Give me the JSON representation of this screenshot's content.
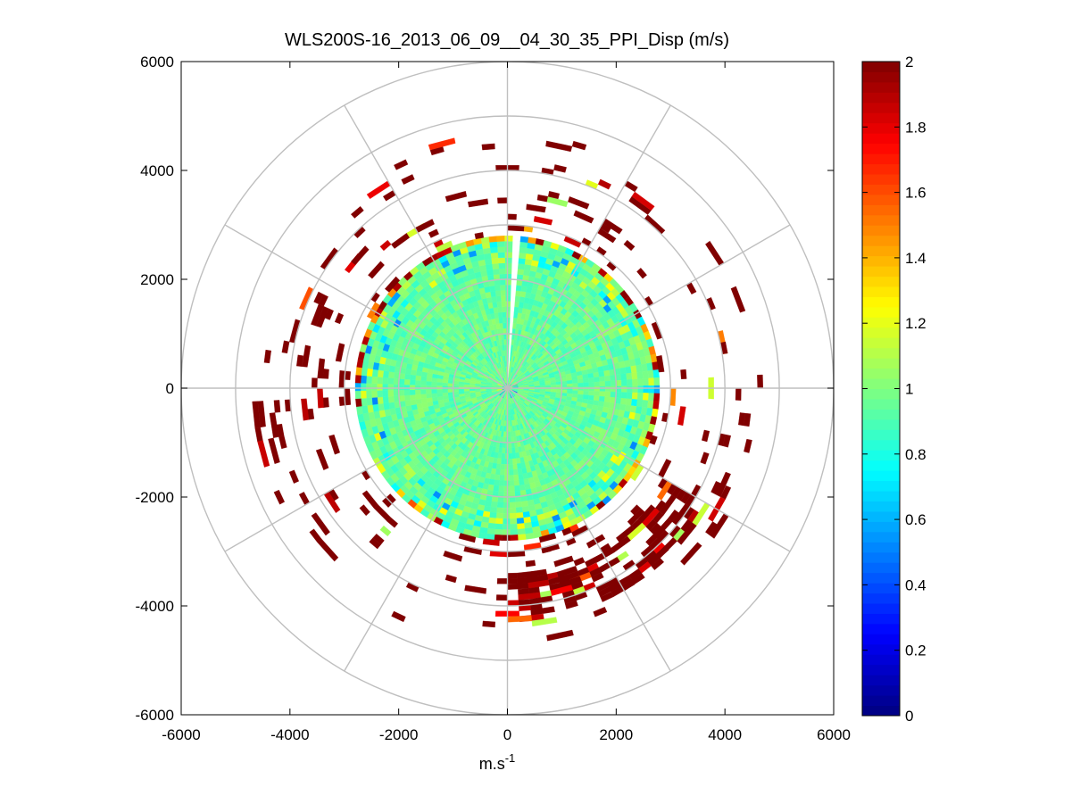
{
  "chart_data": {
    "type": "heatmap",
    "subtype": "polar-ppi",
    "title": "WLS200S-16_2013_06_09__04_30_35_PPI_Disp (m/s)",
    "xlabel": "m.s",
    "xlabel_superscript": "-1",
    "ylabel": "",
    "xlim": [
      -6000,
      6000
    ],
    "ylim": [
      -6000,
      6000
    ],
    "xticks": [
      -6000,
      -4000,
      -2000,
      0,
      2000,
      4000,
      6000
    ],
    "yticks": [
      -6000,
      -4000,
      -2000,
      0,
      2000,
      4000,
      6000
    ],
    "x_tick_labels": [
      "-6000",
      "-4000",
      "-2000",
      "0",
      "2000",
      "4000",
      "6000"
    ],
    "y_tick_labels": [
      "6000",
      "4000",
      "2000",
      "0",
      "-2000",
      "-4000",
      "-6000"
    ],
    "polar_grid": {
      "rings_m": [
        1000,
        2000,
        3000,
        4000,
        5000,
        6000
      ],
      "spokes_deg": [
        0,
        30,
        60,
        90,
        120,
        150,
        180,
        210,
        240,
        270,
        300,
        330
      ]
    },
    "colorbar": {
      "min": 0,
      "max": 2,
      "ticks": [
        0,
        0.2,
        0.4,
        0.6,
        0.8,
        1,
        1.2,
        1.4,
        1.6,
        1.8,
        2
      ],
      "tick_labels": [
        "0",
        "0.2",
        "0.4",
        "0.6",
        "0.8",
        "1",
        "1.2",
        "1.4",
        "1.6",
        "1.8",
        "2"
      ],
      "colormap": "jet"
    },
    "field": {
      "inner_disk_max_range_m": 2800,
      "inner_disk_typical_value": 0.95,
      "missing_sector_deg": [
        0,
        5
      ],
      "outer_sparse_max_range_m": 4700,
      "outer_sparse_typical_value": 2,
      "dense_band_azimuth_deg": [
        120,
        180
      ],
      "dense_band_range_m": [
        3400,
        4200
      ]
    },
    "colors": {
      "grid": "#bfbfbf",
      "axis": "#000000",
      "background": "#ffffff"
    }
  }
}
